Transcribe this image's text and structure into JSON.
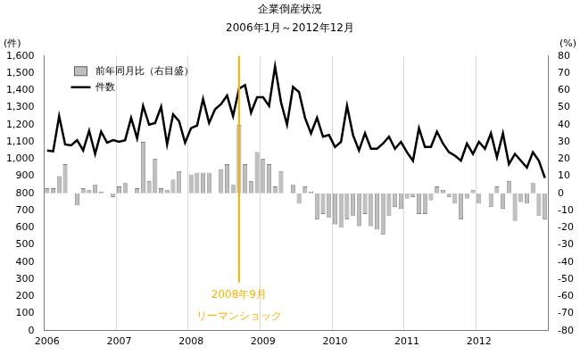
{
  "chart_data": {
    "type": "bar_line",
    "title": "企業倒産状況",
    "subtitle": "2006年1月～2012年12月",
    "y_label": "(件)",
    "y2_label": "(%)",
    "categories": [
      "2006",
      null,
      null,
      null,
      null,
      null,
      null,
      null,
      null,
      null,
      null,
      null,
      "2007",
      null,
      null,
      null,
      null,
      null,
      null,
      null,
      null,
      null,
      null,
      null,
      "2008",
      null,
      null,
      null,
      null,
      null,
      null,
      null,
      null,
      null,
      null,
      null,
      "2009",
      null,
      null,
      null,
      null,
      null,
      null,
      null,
      null,
      null,
      null,
      null,
      "2010",
      null,
      null,
      null,
      null,
      null,
      null,
      null,
      null,
      null,
      null,
      null,
      "2011",
      null,
      null,
      null,
      null,
      null,
      null,
      null,
      null,
      null,
      null,
      null,
      "2012",
      null,
      null,
      null,
      null,
      null,
      null,
      null,
      null,
      null,
      null,
      null
    ],
    "series": [
      {
        "name": "前年同月比（右目盛）",
        "type": "bar",
        "axis": "y2",
        "color": "#bfbfbf",
        "values": [
          3,
          3,
          10,
          17,
          0,
          -7,
          3,
          2,
          5,
          1,
          0,
          -2,
          4,
          6,
          0,
          3,
          30,
          7,
          20,
          3,
          2,
          8,
          13,
          0,
          11,
          12,
          12,
          12,
          0,
          14,
          17,
          5,
          40,
          17,
          7,
          24,
          20,
          17,
          4,
          13,
          0,
          5,
          -6,
          4,
          1,
          -15,
          -12,
          -14,
          -18,
          -20,
          -15,
          -13,
          -19,
          -12,
          -19,
          -21,
          -24,
          -13,
          -8,
          -9,
          -3,
          -2,
          -12,
          -12,
          -4,
          4,
          2,
          -2,
          -6,
          -15,
          -3,
          2,
          -6,
          0,
          -8,
          4,
          -9,
          7,
          -16,
          -5,
          -6,
          6,
          -13,
          -15
        ]
      },
      {
        "name": "件数",
        "type": "line",
        "axis": "y",
        "color": "#000000",
        "values": [
          1050,
          1045,
          1250,
          1085,
          1080,
          1110,
          1050,
          1165,
          1030,
          1160,
          1095,
          1110,
          1100,
          1110,
          1240,
          1120,
          1310,
          1200,
          1210,
          1305,
          1085,
          1260,
          1220,
          1095,
          1180,
          1195,
          1350,
          1210,
          1290,
          1320,
          1370,
          1250,
          1410,
          1430,
          1270,
          1360,
          1360,
          1310,
          1540,
          1330,
          1200,
          1420,
          1390,
          1240,
          1150,
          1240,
          1130,
          1140,
          1070,
          1100,
          1310,
          1140,
          1050,
          1150,
          1060,
          1060,
          1090,
          1130,
          1060,
          1100,
          1040,
          990,
          1180,
          1070,
          1070,
          1160,
          1090,
          1040,
          1020,
          990,
          1090,
          1030,
          1100,
          1060,
          1150,
          1010,
          1150,
          970,
          1030,
          990,
          950,
          1040,
          990,
          890
        ]
      }
    ],
    "ylim": [
      0,
      1600
    ],
    "yticks": [
      0,
      100,
      200,
      300,
      400,
      500,
      600,
      700,
      800,
      900,
      1000,
      1100,
      1200,
      1300,
      1400,
      1500,
      1600
    ],
    "y2lim": [
      -80,
      80
    ],
    "y2ticks": [
      -80,
      -70,
      -60,
      -50,
      -40,
      -30,
      -20,
      -10,
      0,
      10,
      20,
      30,
      40,
      50,
      60,
      70,
      80
    ],
    "grid": true,
    "legend": "upper left",
    "annotations": [
      {
        "position": 32,
        "text": [
          "2008年9月",
          "リーマンショック"
        ],
        "color": "#f5b400"
      }
    ]
  }
}
